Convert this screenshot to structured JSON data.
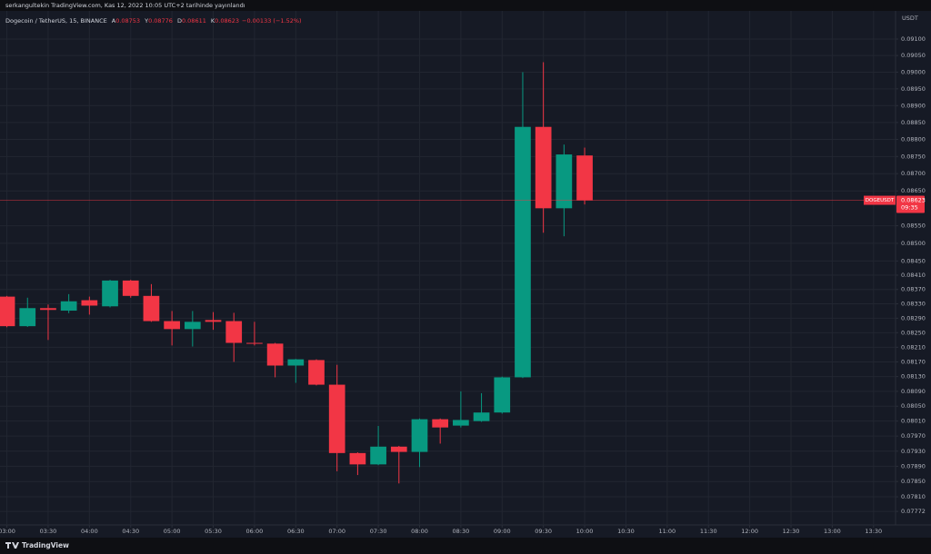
{
  "header": "serkangultekin TradingView.com, Kas 12, 2022 10:05 UTC+2 tarihinde yayınlandı",
  "footer_brand": "TradingView",
  "chart_data": {
    "type": "candlestick",
    "title": "Dogecoin / TetherUS, 15, BINANCE",
    "legend_fields": [
      "A",
      "Y",
      "D",
      "K"
    ],
    "change_text": "−0.00133 (−1.52%)",
    "currency": "USDT",
    "symbol_tag": "DOGEUSDT",
    "countdown": "09:35",
    "up_color": "#089981",
    "down_color": "#f23645",
    "grid": true,
    "log_scale": true,
    "x": [
      180,
      195,
      210,
      225,
      240,
      255,
      270,
      285,
      300,
      315,
      330,
      345,
      360,
      375,
      390,
      405,
      420,
      435,
      450,
      465,
      480,
      495,
      510,
      525,
      540,
      555,
      570,
      585,
      600
    ],
    "open": [
      0.0835,
      0.08268,
      0.08318,
      0.08311,
      0.0834,
      0.08323,
      0.08395,
      0.08352,
      0.08282,
      0.0826,
      0.08285,
      0.08282,
      0.08222,
      0.0822,
      0.0816,
      0.08175,
      0.08108,
      0.07925,
      0.07895,
      0.07942,
      0.07928,
      0.08015,
      0.07998,
      0.0801,
      0.08033,
      0.08128,
      0.08837,
      0.086,
      0.08753
    ],
    "high": [
      0.08352,
      0.08347,
      0.08328,
      0.08357,
      0.0835,
      0.08397,
      0.08397,
      0.08385,
      0.0831,
      0.0831,
      0.08307,
      0.08305,
      0.0828,
      0.08222,
      0.08178,
      0.08177,
      0.08162,
      0.07927,
      0.07997,
      0.07944,
      0.08017,
      0.08017,
      0.0809,
      0.08085,
      0.0813,
      0.09,
      0.0903,
      0.08785,
      0.08776
    ],
    "low": [
      0.08265,
      0.08266,
      0.0823,
      0.08304,
      0.083,
      0.0832,
      0.08347,
      0.0828,
      0.08215,
      0.08212,
      0.08258,
      0.0817,
      0.08215,
      0.08128,
      0.08113,
      0.08106,
      0.07877,
      0.07867,
      0.07893,
      0.07845,
      0.07888,
      0.0795,
      0.07993,
      0.08008,
      0.0803,
      0.08126,
      0.0853,
      0.0852,
      0.08611
    ],
    "close": [
      0.08268,
      0.08318,
      0.08313,
      0.08337,
      0.08325,
      0.08395,
      0.08352,
      0.08282,
      0.0826,
      0.0828,
      0.0828,
      0.08222,
      0.0822,
      0.0816,
      0.08177,
      0.08108,
      0.07925,
      0.07895,
      0.07942,
      0.07928,
      0.08015,
      0.07993,
      0.08013,
      0.08033,
      0.08128,
      0.08837,
      0.086,
      0.08756,
      0.08623
    ],
    "xlim": [
      175,
      826
    ],
    "xticks": [
      {
        "value": 180,
        "label": "03:00"
      },
      {
        "value": 210,
        "label": "03:30"
      },
      {
        "value": 240,
        "label": "04:00"
      },
      {
        "value": 270,
        "label": "04:30"
      },
      {
        "value": 300,
        "label": "05:00"
      },
      {
        "value": 330,
        "label": "05:30"
      },
      {
        "value": 360,
        "label": "06:00"
      },
      {
        "value": 390,
        "label": "06:30"
      },
      {
        "value": 420,
        "label": "07:00"
      },
      {
        "value": 450,
        "label": "07:30"
      },
      {
        "value": 480,
        "label": "08:00"
      },
      {
        "value": 510,
        "label": "08:30"
      },
      {
        "value": 540,
        "label": "09:00"
      },
      {
        "value": 570,
        "label": "09:30"
      },
      {
        "value": 600,
        "label": "10:00"
      },
      {
        "value": 630,
        "label": "10:30"
      },
      {
        "value": 660,
        "label": "11:00"
      },
      {
        "value": 690,
        "label": "11:30"
      },
      {
        "value": 720,
        "label": "12:00"
      },
      {
        "value": 750,
        "label": "12:30"
      },
      {
        "value": 780,
        "label": "13:00"
      },
      {
        "value": 810,
        "label": "13:30"
      }
    ],
    "ylim": [
      0.07737,
      0.09186
    ],
    "yticks": [
      {
        "value": 0.091,
        "label": "0.09100"
      },
      {
        "value": 0.0905,
        "label": "0.09050"
      },
      {
        "value": 0.09,
        "label": "0.09000"
      },
      {
        "value": 0.0895,
        "label": "0.08950"
      },
      {
        "value": 0.089,
        "label": "0.08900"
      },
      {
        "value": 0.0885,
        "label": "0.08850"
      },
      {
        "value": 0.088,
        "label": "0.08800"
      },
      {
        "value": 0.0875,
        "label": "0.08750"
      },
      {
        "value": 0.087,
        "label": "0.08700"
      },
      {
        "value": 0.0865,
        "label": "0.08650"
      },
      {
        "value": 0.0855,
        "label": "0.08550"
      },
      {
        "value": 0.085,
        "label": "0.08500"
      },
      {
        "value": 0.0845,
        "label": "0.08450"
      },
      {
        "value": 0.0841,
        "label": "0.08410"
      },
      {
        "value": 0.0837,
        "label": "0.08370"
      },
      {
        "value": 0.0833,
        "label": "0.08330"
      },
      {
        "value": 0.0829,
        "label": "0.08290"
      },
      {
        "value": 0.0825,
        "label": "0.08250"
      },
      {
        "value": 0.0821,
        "label": "0.08210"
      },
      {
        "value": 0.0817,
        "label": "0.08170"
      },
      {
        "value": 0.0813,
        "label": "0.08130"
      },
      {
        "value": 0.0809,
        "label": "0.08090"
      },
      {
        "value": 0.0805,
        "label": "0.08050"
      },
      {
        "value": 0.0801,
        "label": "0.08010"
      },
      {
        "value": 0.0797,
        "label": "0.07970"
      },
      {
        "value": 0.0793,
        "label": "0.07930"
      },
      {
        "value": 0.0789,
        "label": "0.07890"
      },
      {
        "value": 0.0785,
        "label": "0.07850"
      },
      {
        "value": 0.0781,
        "label": "0.07810"
      },
      {
        "value": 0.07772,
        "label": "0.07772"
      }
    ]
  }
}
